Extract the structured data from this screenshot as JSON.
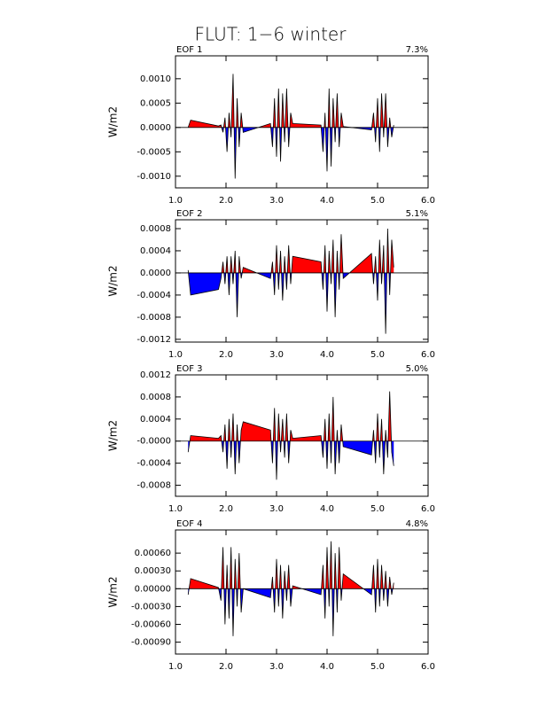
{
  "title": "FLUT: 1−6 winter",
  "chart_data": [
    {
      "type": "area",
      "title": "EOF 1",
      "annotation": "7.3%",
      "ylabel": "W/m2",
      "colors": {
        "positive": "#ff0000",
        "negative": "#0000ff"
      },
      "x": [
        1.25,
        1.3,
        1.85,
        1.9,
        1.94,
        1.98,
        2.02,
        2.06,
        2.1,
        2.14,
        2.18,
        2.22,
        2.26,
        2.3,
        2.34,
        2.88,
        2.92,
        2.96,
        3.0,
        3.04,
        3.08,
        3.12,
        3.16,
        3.2,
        3.24,
        3.28,
        3.32,
        3.88,
        3.92,
        3.96,
        4.0,
        4.04,
        4.08,
        4.12,
        4.16,
        4.2,
        4.24,
        4.28,
        4.32,
        4.88,
        4.92,
        4.96,
        5.0,
        5.04,
        5.08,
        5.12,
        5.16,
        5.2,
        5.24,
        5.28,
        5.32
      ],
      "values": [
        0,
        0.00015,
        3e-05,
        5e-05,
        -0.0001,
        0.0002,
        -0.0005,
        0.0003,
        -0.0002,
        0.0011,
        -0.00105,
        0.0006,
        -0.0004,
        0.0003,
        -0.0001,
        8e-05,
        -0.0004,
        0.0006,
        -0.0006,
        0.0008,
        -0.0007,
        0.0007,
        -0.0003,
        0.0008,
        -0.0004,
        0.0003,
        8e-05,
        5e-05,
        -0.0005,
        0.0003,
        -0.0009,
        0.0008,
        -0.0008,
        0.0006,
        -0.0003,
        0.0007,
        -0.0004,
        0.0003,
        2e-05,
        -5e-05,
        0.0003,
        -0.0003,
        0.0006,
        -0.0005,
        0.0007,
        -0.0002,
        0.0007,
        -0.0004,
        0.0002,
        -0.0002,
        5e-05
      ],
      "xlim": [
        1.0,
        6.0
      ],
      "xticks": [
        {
          "value": 1,
          "label": "1.0"
        },
        {
          "value": 2,
          "label": "2.0"
        },
        {
          "value": 3,
          "label": "3.0"
        },
        {
          "value": 4,
          "label": "4.0"
        },
        {
          "value": 5,
          "label": "5.0"
        },
        {
          "value": 6,
          "label": "6.0"
        }
      ],
      "ylim": [
        -0.00124,
        0.00147
      ],
      "yticks": [
        {
          "value": -0.001,
          "label": "-0.0010"
        },
        {
          "value": -0.0005,
          "label": "-0.0005"
        },
        {
          "value": 0,
          "label": "0.0000"
        },
        {
          "value": 0.0005,
          "label": "0.0005"
        },
        {
          "value": 0.001,
          "label": "0.0010"
        }
      ]
    },
    {
      "type": "area",
      "title": "EOF 2",
      "annotation": "5.1%",
      "ylabel": "W/m2",
      "colors": {
        "positive": "#ff0000",
        "negative": "#0000ff"
      },
      "x": [
        1.25,
        1.3,
        1.85,
        1.9,
        1.94,
        1.98,
        2.02,
        2.06,
        2.1,
        2.14,
        2.18,
        2.22,
        2.26,
        2.3,
        2.34,
        2.88,
        2.92,
        2.96,
        3.0,
        3.04,
        3.08,
        3.12,
        3.16,
        3.2,
        3.24,
        3.28,
        3.32,
        3.88,
        3.92,
        3.96,
        4.0,
        4.04,
        4.08,
        4.12,
        4.16,
        4.2,
        4.24,
        4.28,
        4.32,
        4.88,
        4.92,
        4.96,
        5.0,
        5.04,
        5.08,
        5.12,
        5.16,
        5.2,
        5.24,
        5.28,
        5.32
      ],
      "values": [
        5e-05,
        -0.0004,
        -0.0003,
        -0.0001,
        0.0002,
        -0.0002,
        0.0003,
        -0.0004,
        0.0003,
        -0.0002,
        0.0004,
        -0.0008,
        0.0003,
        -0.0001,
        0.0001,
        -0.0001,
        0.0002,
        -0.0004,
        0.0005,
        -0.0003,
        0.0004,
        -0.0005,
        0.0003,
        -0.0003,
        0.0005,
        -0.0002,
        0.0003,
        0.0002,
        -0.0003,
        0.0005,
        -0.0007,
        0.0004,
        -0.0002,
        0.0006,
        -0.0008,
        0.0004,
        -0.0003,
        0.0007,
        -0.0001,
        0.00035,
        -0.0002,
        0.0003,
        -0.0005,
        0.0006,
        -0.0002,
        0.0005,
        -0.0011,
        0.0008,
        -0.0004,
        0.0006,
        0.0001
      ],
      "xlim": [
        1.0,
        6.0
      ],
      "xticks": [
        {
          "value": 1,
          "label": "1.0"
        },
        {
          "value": 2,
          "label": "2.0"
        },
        {
          "value": 3,
          "label": "3.0"
        },
        {
          "value": 4,
          "label": "4.0"
        },
        {
          "value": 5,
          "label": "5.0"
        },
        {
          "value": 6,
          "label": "6.0"
        }
      ],
      "ylim": [
        -0.00125,
        0.00096
      ],
      "yticks": [
        {
          "value": -0.0012,
          "label": "-0.0012"
        },
        {
          "value": -0.0008,
          "label": "-0.0008"
        },
        {
          "value": -0.0004,
          "label": "-0.0004"
        },
        {
          "value": 0,
          "label": "0.0000"
        },
        {
          "value": 0.0004,
          "label": "0.0004"
        },
        {
          "value": 0.0008,
          "label": "0.0008"
        }
      ]
    },
    {
      "type": "area",
      "title": "EOF 3",
      "annotation": "5.0%",
      "ylabel": "W/m2",
      "colors": {
        "positive": "#ff0000",
        "negative": "#0000ff"
      },
      "x": [
        1.25,
        1.3,
        1.85,
        1.9,
        1.94,
        1.98,
        2.02,
        2.06,
        2.1,
        2.14,
        2.18,
        2.22,
        2.26,
        2.3,
        2.34,
        2.88,
        2.92,
        2.96,
        3.0,
        3.04,
        3.08,
        3.12,
        3.16,
        3.2,
        3.24,
        3.28,
        3.32,
        3.88,
        3.92,
        3.96,
        4.0,
        4.04,
        4.08,
        4.12,
        4.16,
        4.2,
        4.24,
        4.28,
        4.32,
        4.88,
        4.92,
        4.96,
        5.0,
        5.04,
        5.08,
        5.12,
        5.16,
        5.2,
        5.24,
        5.28,
        5.32
      ],
      "values": [
        -0.0002,
        0.0001,
        5e-05,
        0.0001,
        -0.0002,
        0.0003,
        -0.0005,
        0.0004,
        -0.0003,
        0.0005,
        -0.0006,
        0.0003,
        -0.0004,
        0.0002,
        0.00035,
        0.0002,
        -0.0004,
        0.0006,
        -0.0007,
        0.0005,
        -0.0002,
        0.0004,
        -0.0003,
        0.0005,
        -0.0004,
        0.0002,
        5e-05,
        0.0001,
        -0.0003,
        0.0004,
        -0.0005,
        0.0005,
        -0.0004,
        0.0008,
        -0.0006,
        0.0002,
        -0.0004,
        0.0003,
        -0.0001,
        -0.00025,
        0.0002,
        -0.0004,
        0.0005,
        -0.0003,
        0.0004,
        -0.0006,
        0.0002,
        -0.0003,
        0.0009,
        -0.0002,
        -0.00045
      ],
      "xlim": [
        1.0,
        6.0
      ],
      "xticks": [
        {
          "value": 1,
          "label": "1.0"
        },
        {
          "value": 2,
          "label": "2.0"
        },
        {
          "value": 3,
          "label": "3.0"
        },
        {
          "value": 4,
          "label": "4.0"
        },
        {
          "value": 5,
          "label": "5.0"
        },
        {
          "value": 6,
          "label": "6.0"
        }
      ],
      "ylim": [
        -0.001,
        0.0012
      ],
      "yticks": [
        {
          "value": -0.0008,
          "label": "-0.0008"
        },
        {
          "value": -0.0004,
          "label": "-0.0004"
        },
        {
          "value": 0,
          "label": "-0.0000"
        },
        {
          "value": 0.0004,
          "label": "0.0004"
        },
        {
          "value": 0.0008,
          "label": "0.0008"
        },
        {
          "value": 0.0012,
          "label": "0.0012"
        }
      ]
    },
    {
      "type": "area",
      "title": "EOF 4",
      "annotation": "4.8%",
      "ylabel": "W/m2",
      "colors": {
        "positive": "#ff0000",
        "negative": "#0000ff"
      },
      "x": [
        1.25,
        1.3,
        1.85,
        1.9,
        1.94,
        1.98,
        2.02,
        2.06,
        2.1,
        2.14,
        2.18,
        2.22,
        2.26,
        2.3,
        2.34,
        2.88,
        2.92,
        2.96,
        3.0,
        3.04,
        3.08,
        3.12,
        3.16,
        3.2,
        3.24,
        3.28,
        3.32,
        3.88,
        3.92,
        3.96,
        4.0,
        4.04,
        4.08,
        4.12,
        4.16,
        4.2,
        4.24,
        4.28,
        4.32,
        4.88,
        4.92,
        4.96,
        5.0,
        5.04,
        5.08,
        5.12,
        5.16,
        5.2,
        5.24,
        5.28,
        5.32
      ],
      "values": [
        -0.0001,
        0.00017,
        2e-05,
        -0.0002,
        0.0007,
        -0.0006,
        0.0004,
        -0.0005,
        0.0007,
        -0.0008,
        0.0005,
        -0.0003,
        0.0006,
        -0.0004,
        0,
        -0.00015,
        0.0002,
        -0.0004,
        0.0005,
        -0.0003,
        0.0004,
        -0.0005,
        0.0003,
        -0.0002,
        0.0004,
        -0.0003,
        5e-05,
        -0.0001,
        0.0004,
        -0.0005,
        0.0007,
        -0.0003,
        0.0008,
        -0.0008,
        0.0006,
        -0.0004,
        0.0007,
        -0.0002,
        0.00025,
        -0.0001,
        0.0004,
        -0.0004,
        0.0005,
        -0.0003,
        0.0004,
        -0.0002,
        0.0003,
        -0.0003,
        0.0002,
        -0.0001,
        0.0001
      ],
      "xlim": [
        1.0,
        6.0
      ],
      "xticks": [
        {
          "value": 1,
          "label": "1.0"
        },
        {
          "value": 2,
          "label": "2.0"
        },
        {
          "value": 3,
          "label": "3.0"
        },
        {
          "value": 4,
          "label": "4.0"
        },
        {
          "value": 5,
          "label": "5.0"
        },
        {
          "value": 6,
          "label": "6.0"
        }
      ],
      "ylim": [
        -0.0011,
        0.00099
      ],
      "yticks": [
        {
          "value": -0.0009,
          "label": "-0.00090"
        },
        {
          "value": -0.0006,
          "label": "-0.00060"
        },
        {
          "value": -0.0003,
          "label": "-0.00030"
        },
        {
          "value": 0,
          "label": "0.00000"
        },
        {
          "value": 0.0003,
          "label": "0.00030"
        },
        {
          "value": 0.0006,
          "label": "0.00060"
        }
      ]
    }
  ]
}
